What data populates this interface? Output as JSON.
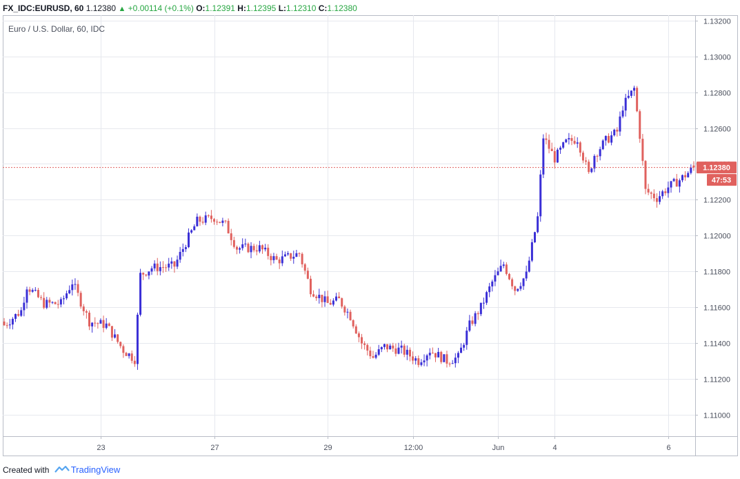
{
  "header": {
    "symbol": "FX_IDC:EURUSD, 60",
    "last": "1.12380",
    "change": "+0.00114 (+0.1%)",
    "o_label": "O:",
    "o_value": "1.12391",
    "h_label": "H:",
    "h_value": "1.12395",
    "l_label": "L:",
    "l_value": "1.12310",
    "c_label": "C:",
    "c_value": "1.12380"
  },
  "footer": {
    "created_with": "Created with",
    "brand": "TradingView"
  },
  "colors": {
    "up": "#3a2fd6",
    "down": "#e0615e",
    "grid": "#e6e8ee",
    "axis_text": "#4a4f5c",
    "price_line": "#e0615e",
    "price_label_bg": "#e0615e"
  },
  "chart_data": {
    "type": "candlestick",
    "title": "Euro / U.S. Dollar, 60, IDC",
    "ylim": [
      1.1088,
      1.1323
    ],
    "y_ticks": [
      "1.13200",
      "1.13000",
      "1.12800",
      "1.12600",
      "1.12400",
      "1.12200",
      "1.12000",
      "1.11800",
      "1.11600",
      "1.11400",
      "1.11200",
      "1.11000"
    ],
    "x_ticks": [
      {
        "label": "23",
        "bar": 34
      },
      {
        "label": "27",
        "bar": 74
      },
      {
        "label": "29",
        "bar": 114
      },
      {
        "label": "12:00",
        "bar": 144
      },
      {
        "label": "Jun",
        "bar": 174
      },
      {
        "label": "4",
        "bar": 194
      },
      {
        "label": "6",
        "bar": 234
      }
    ],
    "grid": true,
    "current_price": 1.1238,
    "current_price_label": "1.12380",
    "countdown_label": "47:53",
    "bars": 244,
    "anchors": [
      [
        0,
        1.115
      ],
      [
        6,
        1.1158
      ],
      [
        8,
        1.1172
      ],
      [
        14,
        1.1162
      ],
      [
        20,
        1.1162
      ],
      [
        24,
        1.1174
      ],
      [
        30,
        1.1152
      ],
      [
        36,
        1.115
      ],
      [
        42,
        1.1136
      ],
      [
        46,
        1.1131
      ],
      [
        48,
        1.1178
      ],
      [
        52,
        1.1182
      ],
      [
        60,
        1.1183
      ],
      [
        64,
        1.1196
      ],
      [
        68,
        1.1208
      ],
      [
        74,
        1.121
      ],
      [
        78,
        1.1206
      ],
      [
        82,
        1.1193
      ],
      [
        90,
        1.1193
      ],
      [
        96,
        1.1186
      ],
      [
        104,
        1.119
      ],
      [
        108,
        1.117
      ],
      [
        114,
        1.1162
      ],
      [
        118,
        1.1164
      ],
      [
        122,
        1.1155
      ],
      [
        126,
        1.114
      ],
      [
        130,
        1.1132
      ],
      [
        134,
        1.1138
      ],
      [
        140,
        1.1136
      ],
      [
        146,
        1.113
      ],
      [
        150,
        1.1136
      ],
      [
        156,
        1.113
      ],
      [
        160,
        1.1132
      ],
      [
        164,
        1.115
      ],
      [
        168,
        1.116
      ],
      [
        172,
        1.1174
      ],
      [
        176,
        1.1184
      ],
      [
        180,
        1.117
      ],
      [
        184,
        1.1178
      ],
      [
        188,
        1.121
      ],
      [
        190,
        1.1255
      ],
      [
        194,
        1.1243
      ],
      [
        198,
        1.1252
      ],
      [
        202,
        1.1254
      ],
      [
        206,
        1.1234
      ],
      [
        208,
        1.1245
      ],
      [
        212,
        1.1253
      ],
      [
        216,
        1.1258
      ],
      [
        218,
        1.1272
      ],
      [
        222,
        1.1282
      ],
      [
        224,
        1.1256
      ],
      [
        226,
        1.1225
      ],
      [
        230,
        1.1221
      ],
      [
        234,
        1.1227
      ],
      [
        238,
        1.1231
      ],
      [
        241,
        1.1235
      ],
      [
        243,
        1.1238
      ]
    ]
  }
}
